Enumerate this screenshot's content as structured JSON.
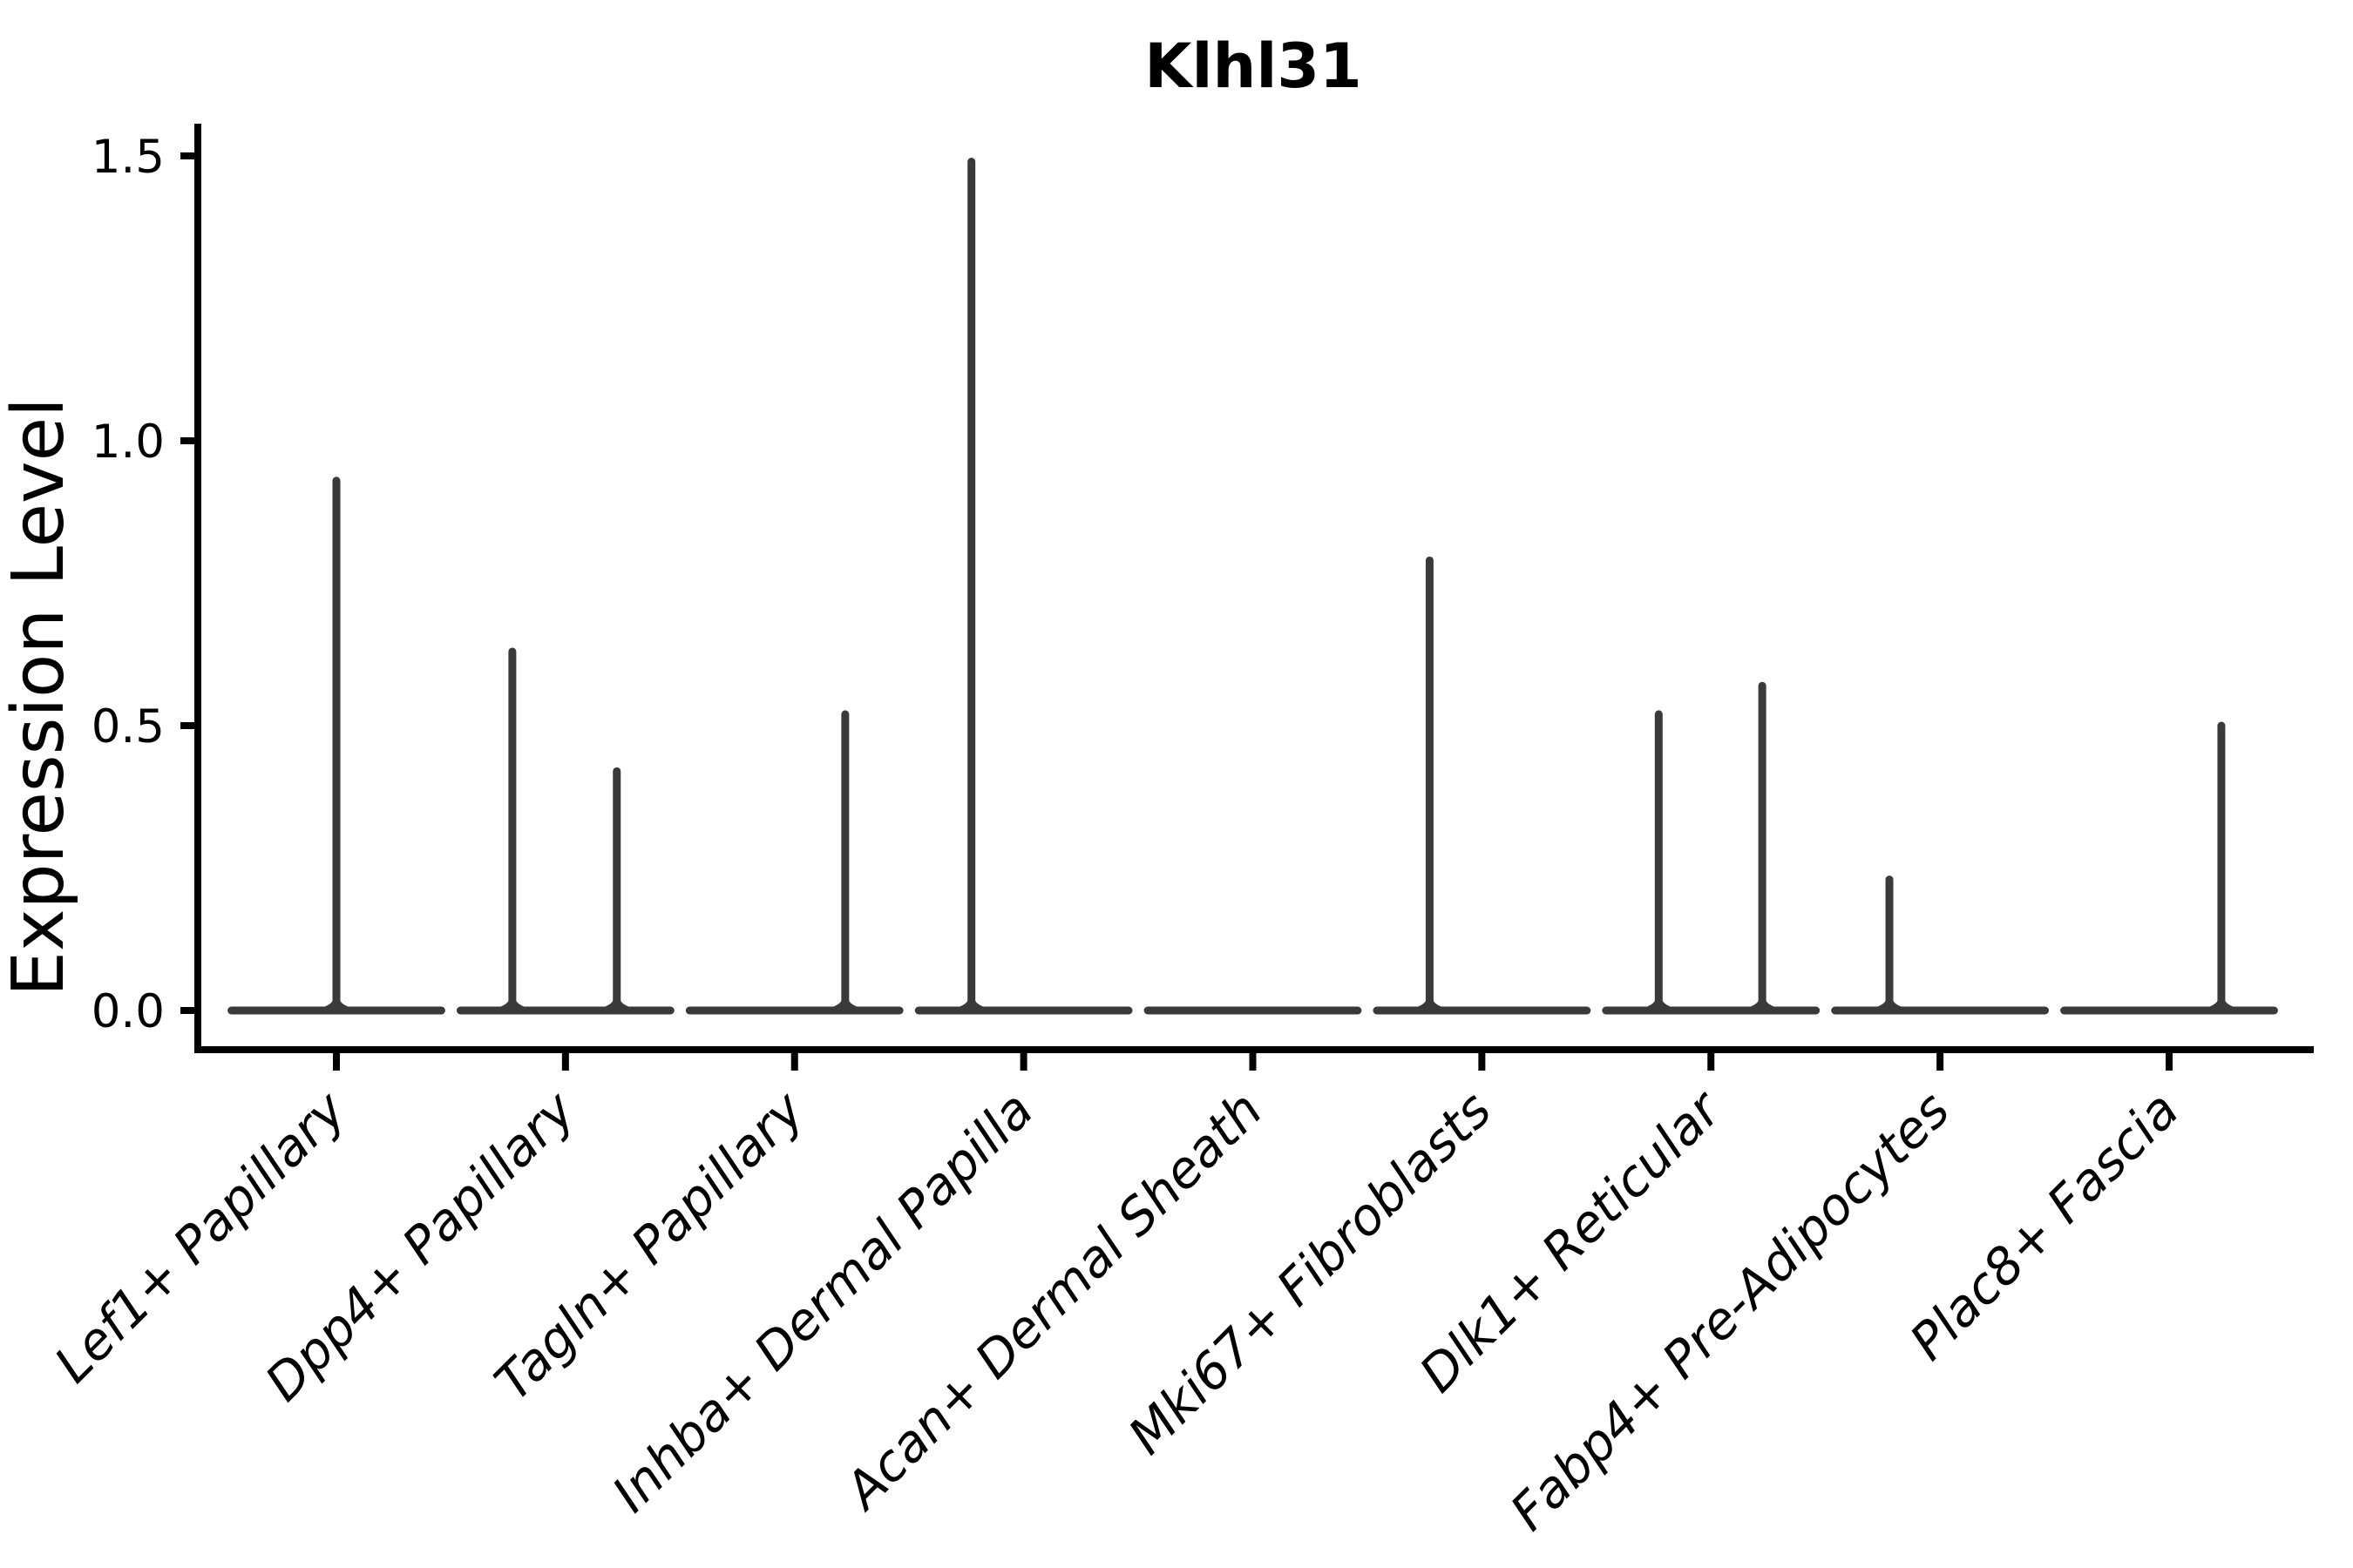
{
  "chart_data": {
    "type": "violin",
    "title": "Klhl31",
    "ylabel": "Expression Level",
    "xlabel": "",
    "grid": false,
    "legend": null,
    "ylim": [
      -0.07,
      1.56
    ],
    "yticks": [
      {
        "value": 0.0,
        "label": "0.0"
      },
      {
        "value": 0.5,
        "label": "0.5"
      },
      {
        "value": 1.0,
        "label": "1.0"
      },
      {
        "value": 1.5,
        "label": "1.5"
      }
    ],
    "categories": [
      "Lef1+ Papillary",
      "Dpp4+ Papillary",
      "Tagln+ Papillary",
      "Inhba+ Dermal Papilla",
      "Acan+ Dermal Sheath",
      "Mki67+ Fibroblasts",
      "Dlk1+ Reticular",
      "Fabp4+ Pre-Adipocytes",
      "Plac8+ Fascia"
    ],
    "violins": [
      {
        "category": "Lef1+ Papillary",
        "baseline_at_zero": true,
        "needles": [
          {
            "offset_frac": 0.0,
            "value": 0.93
          }
        ]
      },
      {
        "category": "Dpp4+ Papillary",
        "baseline_at_zero": true,
        "needles": [
          {
            "offset_frac": -0.232,
            "value": 0.63
          },
          {
            "offset_frac": 0.224,
            "value": 0.42
          }
        ]
      },
      {
        "category": "Tagln+ Papillary",
        "baseline_at_zero": true,
        "needles": [
          {
            "offset_frac": 0.221,
            "value": 0.52
          }
        ]
      },
      {
        "category": "Inhba+ Dermal Papilla",
        "baseline_at_zero": true,
        "needles": [
          {
            "offset_frac": -0.228,
            "value": 1.49
          }
        ]
      },
      {
        "category": "Acan+ Dermal Sheath",
        "baseline_at_zero": true,
        "needles": []
      },
      {
        "category": "Mki67+ Fibroblasts",
        "baseline_at_zero": true,
        "needles": [
          {
            "offset_frac": -0.228,
            "value": 0.79
          }
        ]
      },
      {
        "category": "Dlk1+ Reticular",
        "baseline_at_zero": true,
        "needles": [
          {
            "offset_frac": -0.228,
            "value": 0.52
          },
          {
            "offset_frac": 0.224,
            "value": 0.57
          }
        ]
      },
      {
        "category": "Fabp4+ Pre-Adipocytes",
        "baseline_at_zero": true,
        "needles": [
          {
            "offset_frac": -0.221,
            "value": 0.23
          }
        ]
      },
      {
        "category": "Plac8+ Fascia",
        "baseline_at_zero": true,
        "needles": [
          {
            "offset_frac": 0.228,
            "value": 0.5
          }
        ]
      }
    ],
    "style": {
      "violin_color": "#3a3a3a",
      "axis_color": "#000000",
      "violin_width_frac": 0.92,
      "background": "#ffffff"
    }
  }
}
